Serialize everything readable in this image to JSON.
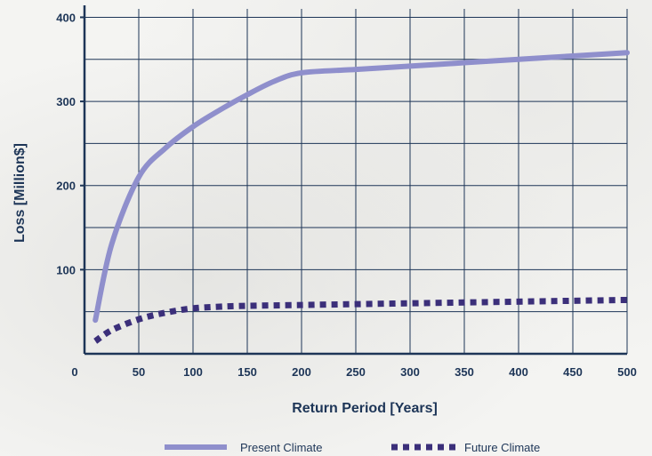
{
  "chart_data": {
    "type": "line",
    "xlabel": "Return Period [Years]",
    "ylabel": "Loss [Million$]",
    "xlim": [
      0,
      500
    ],
    "ylim": [
      0,
      410
    ],
    "x_ticks": [
      0,
      50,
      100,
      150,
      200,
      250,
      300,
      350,
      400,
      450,
      500
    ],
    "y_ticks": [
      100,
      200,
      300,
      400
    ],
    "x_grid": [
      0,
      50,
      100,
      150,
      200,
      250,
      300,
      350,
      400,
      450,
      500
    ],
    "y_grid": [
      50,
      100,
      150,
      200,
      250,
      300,
      350,
      400
    ],
    "grid": true,
    "legend_position": "bottom",
    "series": [
      {
        "name": "Present Climate",
        "style": "solid",
        "color": "#8f8fcc",
        "x": [
          10,
          25,
          50,
          75,
          100,
          125,
          150,
          175,
          200,
          250,
          300,
          350,
          400,
          450,
          500
        ],
        "y": [
          40,
          130,
          210,
          245,
          270,
          290,
          308,
          324,
          334,
          338,
          342,
          346,
          350,
          354,
          358
        ]
      },
      {
        "name": "Future Climate",
        "style": "dotted",
        "color": "#3b2f7a",
        "x": [
          10,
          25,
          50,
          75,
          100,
          125,
          150,
          200,
          250,
          300,
          350,
          400,
          450,
          500
        ],
        "y": [
          15,
          28,
          41,
          49,
          54,
          56,
          57,
          58,
          59,
          60,
          61,
          62,
          63,
          64
        ]
      }
    ]
  }
}
